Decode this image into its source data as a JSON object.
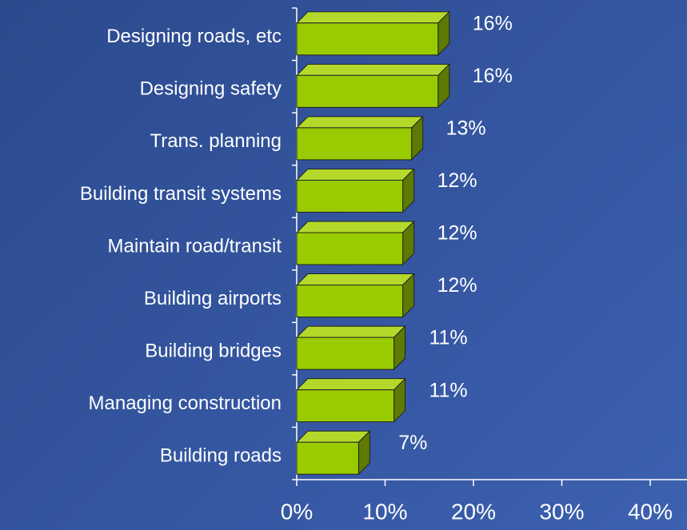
{
  "chart_data": {
    "type": "bar3d_horizontal",
    "categories": [
      "Designing roads, etc",
      "Designing safety",
      "Trans. planning",
      "Building transit systems",
      "Maintain road/transit",
      "Building airports",
      "Building bridges",
      "Managing construction",
      "Building roads"
    ],
    "values": [
      16,
      16,
      13,
      12,
      12,
      12,
      11,
      11,
      7
    ],
    "value_labels": [
      "16%",
      "16%",
      "13%",
      "12%",
      "12%",
      "12%",
      "11%",
      "11%",
      "7%"
    ],
    "color": "#99cc00",
    "xlim": [
      0,
      40
    ],
    "xticks": [
      {
        "value": 0,
        "label": "0%"
      },
      {
        "value": 10,
        "label": "10%"
      },
      {
        "value": 20,
        "label": "20%"
      },
      {
        "value": 30,
        "label": "30%"
      },
      {
        "value": 40,
        "label": "40%"
      }
    ]
  }
}
